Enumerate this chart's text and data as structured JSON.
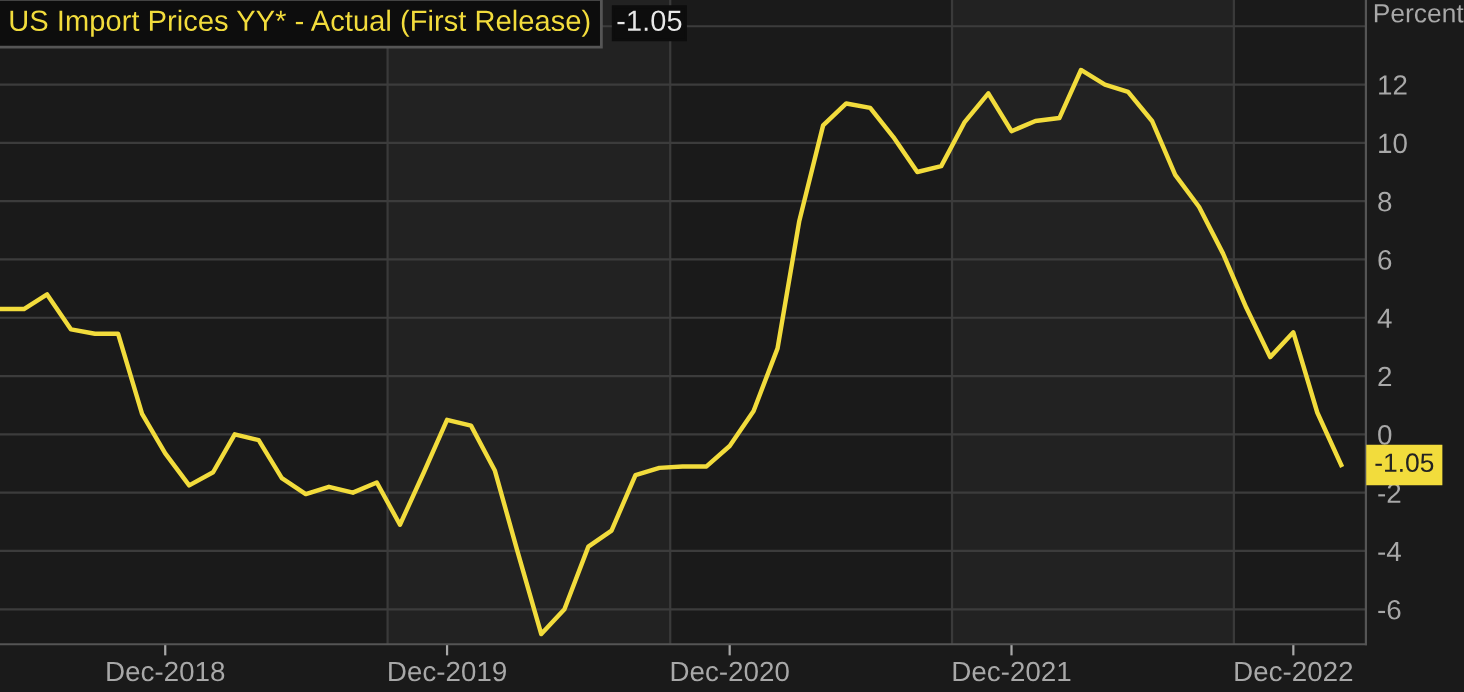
{
  "chart_data": {
    "type": "line",
    "title": "US Import Prices YY* - Actual (First Release)",
    "annotations": [
      "-1.05"
    ],
    "ylabel": "Percent",
    "x": [
      "2018-05",
      "2018-06",
      "2018-07",
      "2018-08",
      "2018-09",
      "2018-10",
      "2018-11",
      "2018-12",
      "2019-01",
      "2019-02",
      "2019-03",
      "2019-04",
      "2019-05",
      "2019-06",
      "2019-07",
      "2019-08",
      "2019-09",
      "2019-10",
      "2019-11",
      "2019-12",
      "2020-01",
      "2020-02",
      "2020-03",
      "2020-04",
      "2020-05",
      "2020-06",
      "2020-07",
      "2020-08",
      "2020-09",
      "2020-10",
      "2020-11",
      "2020-12",
      "2021-01",
      "2021-02",
      "2021-03",
      "2021-04",
      "2021-05",
      "2021-06",
      "2021-07",
      "2021-08",
      "2021-09",
      "2021-10",
      "2021-11",
      "2021-12",
      "2022-01",
      "2022-02",
      "2022-03",
      "2022-04",
      "2022-05",
      "2022-06",
      "2022-07",
      "2022-08",
      "2022-09",
      "2022-10",
      "2022-11",
      "2022-12",
      "2023-01",
      "2023-02"
    ],
    "series": [
      {
        "color": "#f2dc3c",
        "values": [
          4.3,
          4.3,
          4.8,
          3.6,
          3.45,
          3.45,
          0.7,
          -0.65,
          -1.75,
          -1.3,
          0.0,
          -0.2,
          -1.5,
          -2.05,
          -1.8,
          -2.0,
          -1.65,
          -3.1,
          -1.3,
          0.5,
          0.3,
          -1.25,
          -4.0,
          -6.85,
          -6.0,
          -3.85,
          -3.3,
          -1.4,
          -1.15,
          -1.1,
          -1.1,
          -0.4,
          0.8,
          2.95,
          7.3,
          10.6,
          11.35,
          11.2,
          10.2,
          9.0,
          9.2,
          10.7,
          11.7,
          10.4,
          10.75,
          10.85,
          12.5,
          12.0,
          11.75,
          10.75,
          8.9,
          7.8,
          6.2,
          4.35,
          2.65,
          3.5,
          0.75,
          -1.05
        ],
        "value_labels": [
          null,
          null,
          null,
          null,
          null,
          null,
          null,
          null,
          null,
          null,
          null,
          null,
          null,
          null,
          null,
          null,
          null,
          null,
          null,
          null,
          null,
          null,
          null,
          null,
          null,
          null,
          null,
          null,
          null,
          null,
          null,
          null,
          null,
          null,
          null,
          null,
          null,
          null,
          null,
          null,
          null,
          null,
          null,
          null,
          null,
          null,
          null,
          null,
          null,
          null,
          null,
          null,
          null,
          null,
          null,
          null,
          null,
          "-1.05"
        ]
      }
    ],
    "xlim": [
      "2018-05-01",
      "2023-03-05"
    ],
    "xticks": [
      {
        "value": "2018-12",
        "label": "Dec-2018"
      },
      {
        "value": "2019-12",
        "label": "Dec-2019"
      },
      {
        "value": "2020-12",
        "label": "Dec-2020"
      },
      {
        "value": "2021-12",
        "label": "Dec-2021"
      },
      {
        "value": "2022-12",
        "label": "Dec-2022"
      }
    ],
    "ylim": [
      -7.2,
      14.9
    ],
    "yticks": [
      -6,
      -4,
      -2,
      0,
      2,
      4,
      6,
      8,
      10,
      12,
      {
        "value": 14,
        "label": null
      }
    ],
    "bands": [
      {
        "axis": "x",
        "from": "2019-09-15",
        "to": "2020-09-15",
        "color": "#222222"
      },
      {
        "axis": "x",
        "from": "2021-09-15",
        "to": "2022-09-15",
        "color": "#222222"
      }
    ],
    "grid": "y",
    "marker": "none",
    "line_style": "solid"
  }
}
